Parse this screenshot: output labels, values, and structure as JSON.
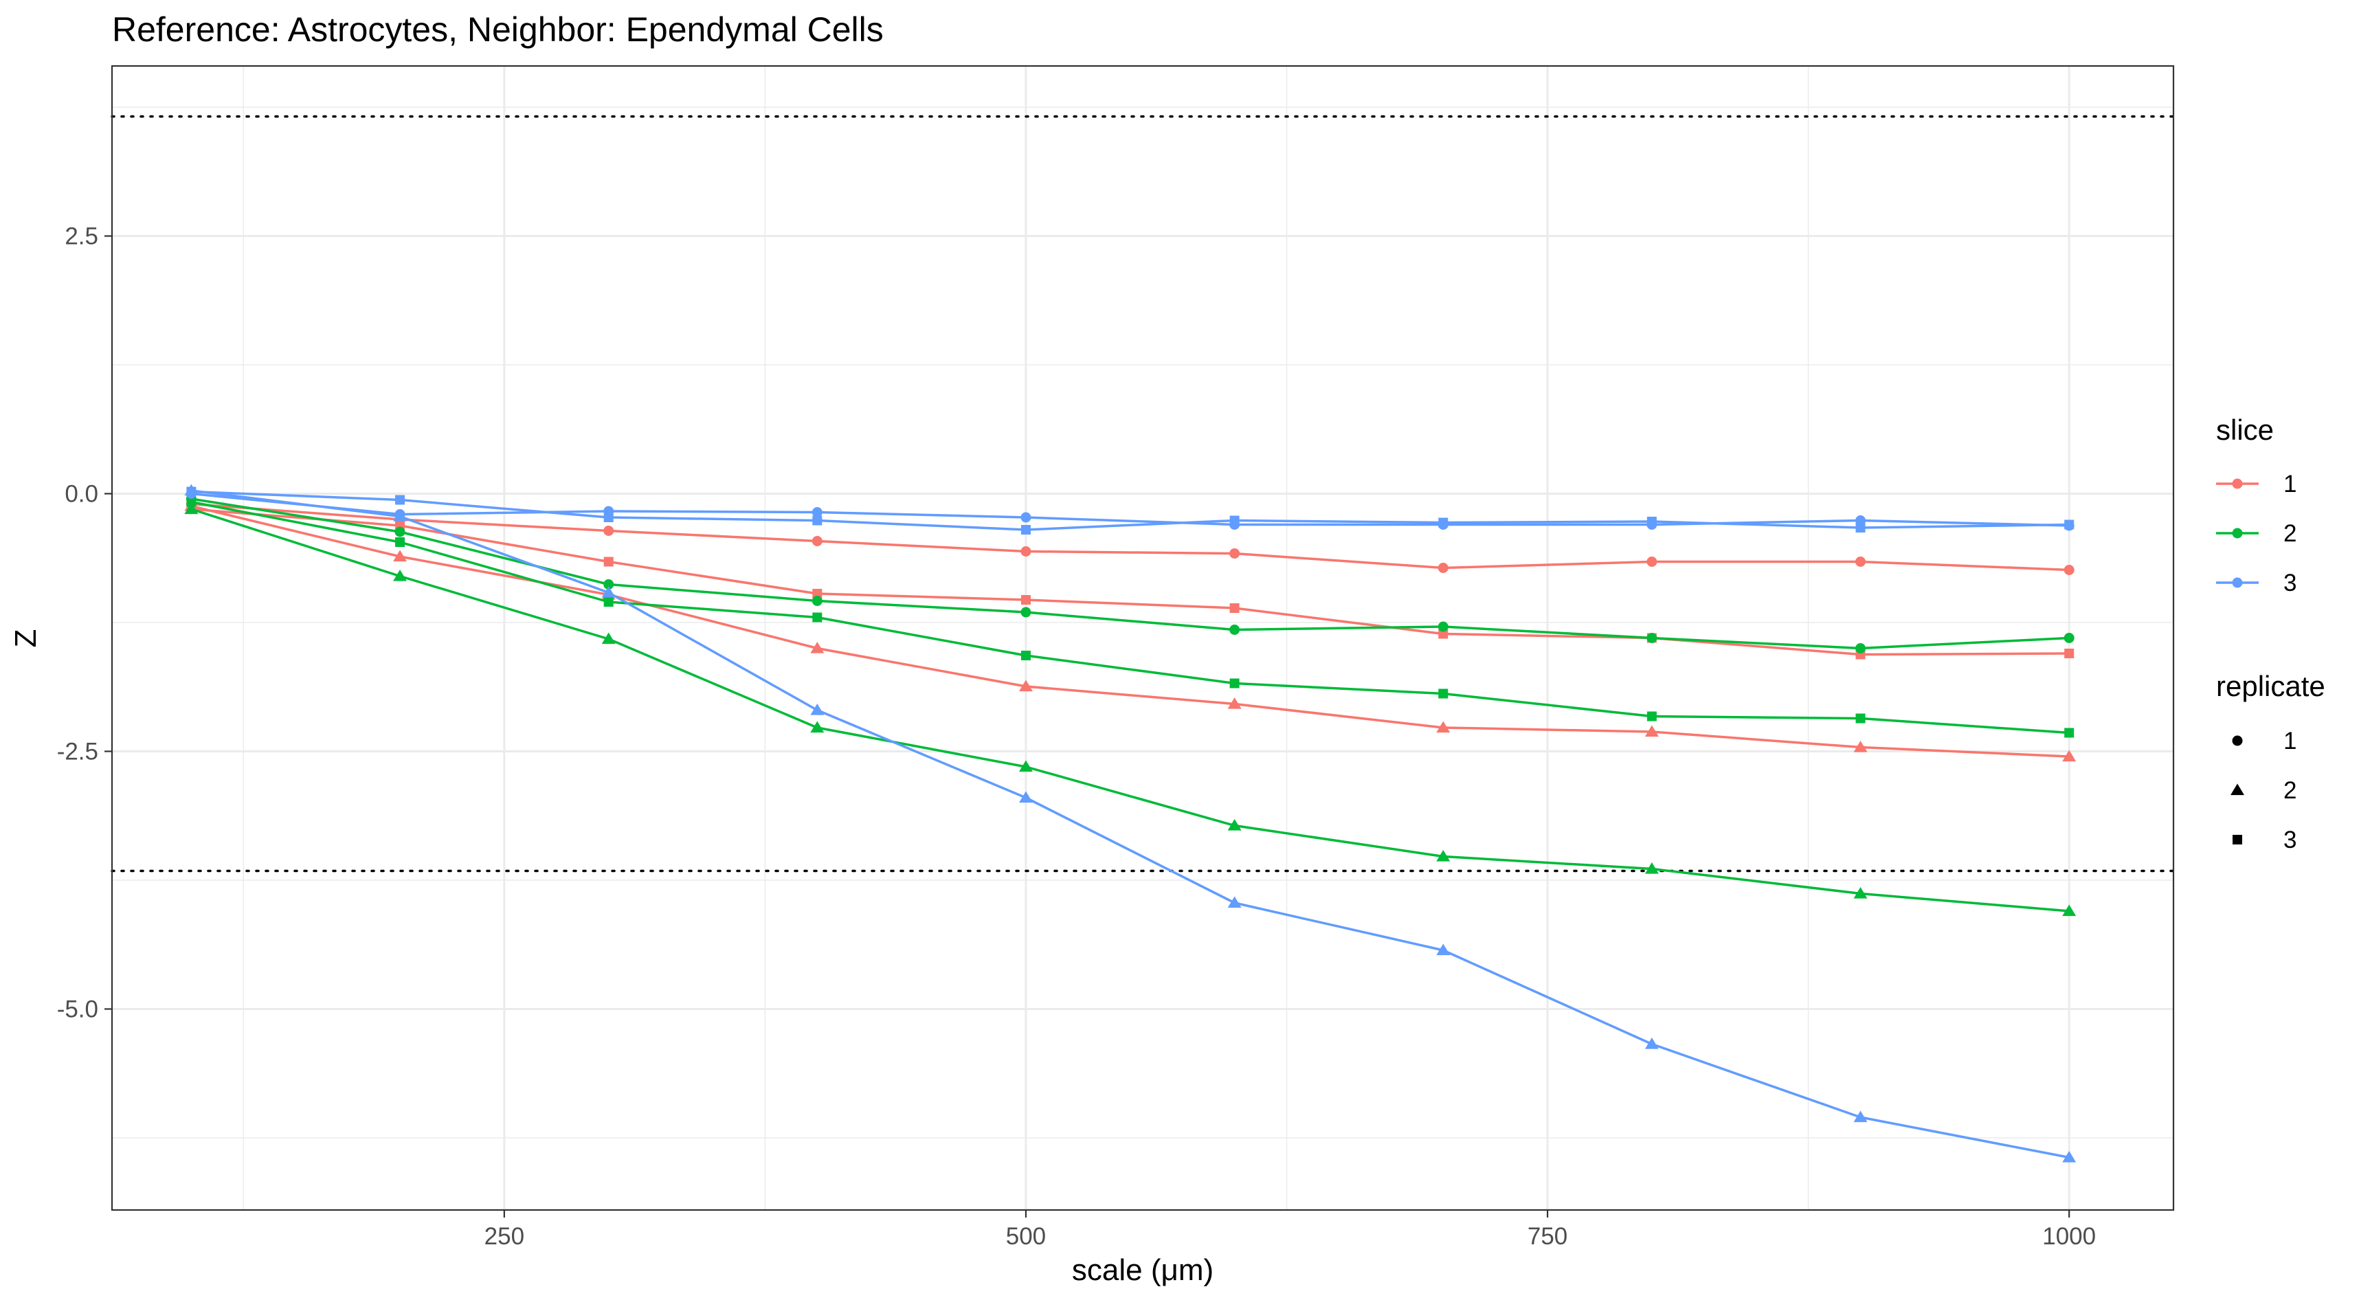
{
  "chart_data": {
    "type": "line",
    "title": "Reference: Astrocytes, Neighbor: Ependymal Cells",
    "xlabel": "scale (μm)",
    "ylabel": "Z",
    "x": [
      100,
      200,
      300,
      400,
      500,
      600,
      700,
      800,
      900,
      1000
    ],
    "xlim": [
      62,
      1050
    ],
    "ylim": [
      -6.95,
      4.15
    ],
    "x_ticks": [
      250,
      500,
      750,
      1000
    ],
    "x_tick_labels": [
      "250",
      "500",
      "750",
      "1000"
    ],
    "y_ticks": [
      2.5,
      0.0,
      -2.5,
      -5.0
    ],
    "y_tick_labels": [
      "2.5",
      "0.0",
      "-2.5",
      "-5.0"
    ],
    "grid": true,
    "reference_lines": [
      3.66,
      -3.66
    ],
    "legends": {
      "position": "right",
      "slice": {
        "title": "slice",
        "items": [
          {
            "label": "1",
            "color": "#F8766D"
          },
          {
            "label": "2",
            "color": "#00BA38"
          },
          {
            "label": "3",
            "color": "#619CFF"
          }
        ]
      },
      "replicate": {
        "title": "replicate",
        "items": [
          {
            "label": "1",
            "shape": "circle"
          },
          {
            "label": "2",
            "shape": "triangle"
          },
          {
            "label": "3",
            "shape": "square"
          }
        ]
      }
    },
    "series": [
      {
        "slice": "1",
        "replicate": "1",
        "color": "#F8766D",
        "shape": "circle",
        "values": [
          -0.1,
          -0.25,
          -0.36,
          -0.46,
          -0.56,
          -0.58,
          -0.72,
          -0.66,
          -0.66,
          -0.74
        ]
      },
      {
        "slice": "1",
        "replicate": "2",
        "color": "#F8766D",
        "shape": "triangle",
        "values": [
          -0.12,
          -0.61,
          -0.98,
          -1.5,
          -1.87,
          -2.04,
          -2.27,
          -2.31,
          -2.46,
          -2.55
        ]
      },
      {
        "slice": "1",
        "replicate": "3",
        "color": "#F8766D",
        "shape": "square",
        "values": [
          -0.15,
          -0.31,
          -0.66,
          -0.97,
          -1.03,
          -1.11,
          -1.36,
          -1.4,
          -1.56,
          -1.55
        ]
      },
      {
        "slice": "2",
        "replicate": "1",
        "color": "#00BA38",
        "shape": "circle",
        "values": [
          -0.05,
          -0.37,
          -0.88,
          -1.04,
          -1.15,
          -1.32,
          -1.29,
          -1.4,
          -1.5,
          -1.4
        ]
      },
      {
        "slice": "2",
        "replicate": "2",
        "color": "#00BA38",
        "shape": "triangle",
        "values": [
          -0.15,
          -0.8,
          -1.41,
          -2.27,
          -2.65,
          -3.22,
          -3.52,
          -3.64,
          -3.88,
          -4.05
        ]
      },
      {
        "slice": "2",
        "replicate": "3",
        "color": "#00BA38",
        "shape": "square",
        "values": [
          -0.08,
          -0.47,
          -1.05,
          -1.2,
          -1.57,
          -1.84,
          -1.94,
          -2.16,
          -2.18,
          -2.32
        ]
      },
      {
        "slice": "3",
        "replicate": "1",
        "color": "#619CFF",
        "shape": "circle",
        "values": [
          0.0,
          -0.2,
          -0.17,
          -0.18,
          -0.23,
          -0.3,
          -0.3,
          -0.3,
          -0.26,
          -0.31
        ]
      },
      {
        "slice": "3",
        "replicate": "2",
        "color": "#619CFF",
        "shape": "triangle",
        "values": [
          0.03,
          -0.22,
          -0.96,
          -2.1,
          -2.95,
          -3.97,
          -4.43,
          -5.34,
          -6.05,
          -6.44
        ]
      },
      {
        "slice": "3",
        "replicate": "3",
        "color": "#619CFF",
        "shape": "square",
        "values": [
          0.02,
          -0.06,
          -0.23,
          -0.26,
          -0.35,
          -0.26,
          -0.28,
          -0.27,
          -0.33,
          -0.3
        ]
      }
    ]
  }
}
